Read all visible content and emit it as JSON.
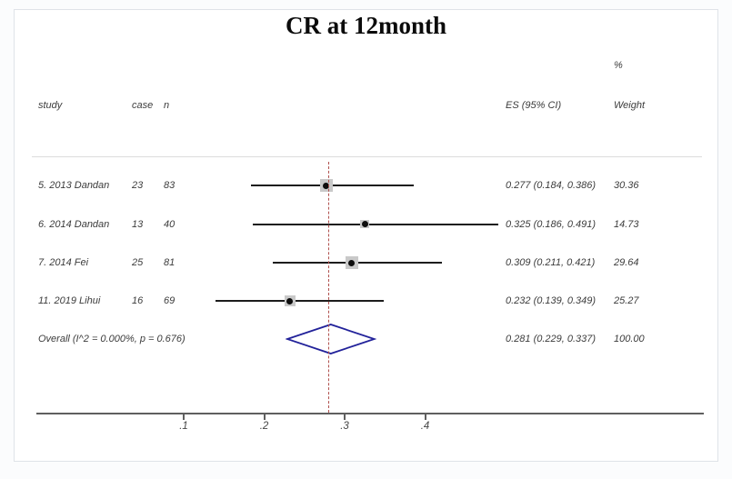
{
  "title": "CR at 12month",
  "columns": {
    "study": "study",
    "case": "case",
    "n": "n",
    "es_ci": "ES (95% CI)",
    "percent": "%",
    "weight": "Weight"
  },
  "colors": {
    "diamond_stroke": "#22229a",
    "dashed_line": "#b0504d",
    "weight_box": "#c9c9c9",
    "ci_line": "#1c1c1c",
    "axis": "#5f5f5f",
    "panel_border": "#dfe3e8",
    "text": "#3c3c3c"
  },
  "chart_data": {
    "type": "forest",
    "title": "CR at 12month",
    "xlabel": "",
    "ylabel": "",
    "xlim": [
      -0.08,
      0.75
    ],
    "grid": false,
    "x_ticks": [
      ".1",
      ".2",
      ".3",
      ".4"
    ],
    "x_tick_values": [
      0.1,
      0.2,
      0.3,
      0.4
    ],
    "studies": [
      {
        "study": "5. 2013 Dandan",
        "case": "23",
        "n": "83",
        "es": 0.277,
        "ci_low": 0.184,
        "ci_high": 0.386,
        "es_ci_label": "0.277 (0.184, 0.386)",
        "weight": 30.36,
        "weight_label": "30.36"
      },
      {
        "study": "6. 2014 Dandan",
        "case": "13",
        "n": "40",
        "es": 0.325,
        "ci_low": 0.186,
        "ci_high": 0.491,
        "es_ci_label": "0.325 (0.186, 0.491)",
        "weight": 14.73,
        "weight_label": "14.73"
      },
      {
        "study": "7. 2014 Fei",
        "case": "25",
        "n": "81",
        "es": 0.309,
        "ci_low": 0.211,
        "ci_high": 0.421,
        "es_ci_label": "0.309 (0.211, 0.421)",
        "weight": 29.64,
        "weight_label": "29.64"
      },
      {
        "study": "11. 2019 Lihui",
        "case": "16",
        "n": "69",
        "es": 0.232,
        "ci_low": 0.139,
        "ci_high": 0.349,
        "es_ci_label": "0.232 (0.139, 0.349)",
        "weight": 25.27,
        "weight_label": "25.27"
      }
    ],
    "overall": {
      "label": "Overall  (I^2 = 0.000%, p = 0.676)",
      "es": 0.281,
      "ci_low": 0.229,
      "ci_high": 0.337,
      "es_ci_label": "0.281 (0.229, 0.337)",
      "weight": 100.0,
      "weight_label": "100.00"
    }
  }
}
